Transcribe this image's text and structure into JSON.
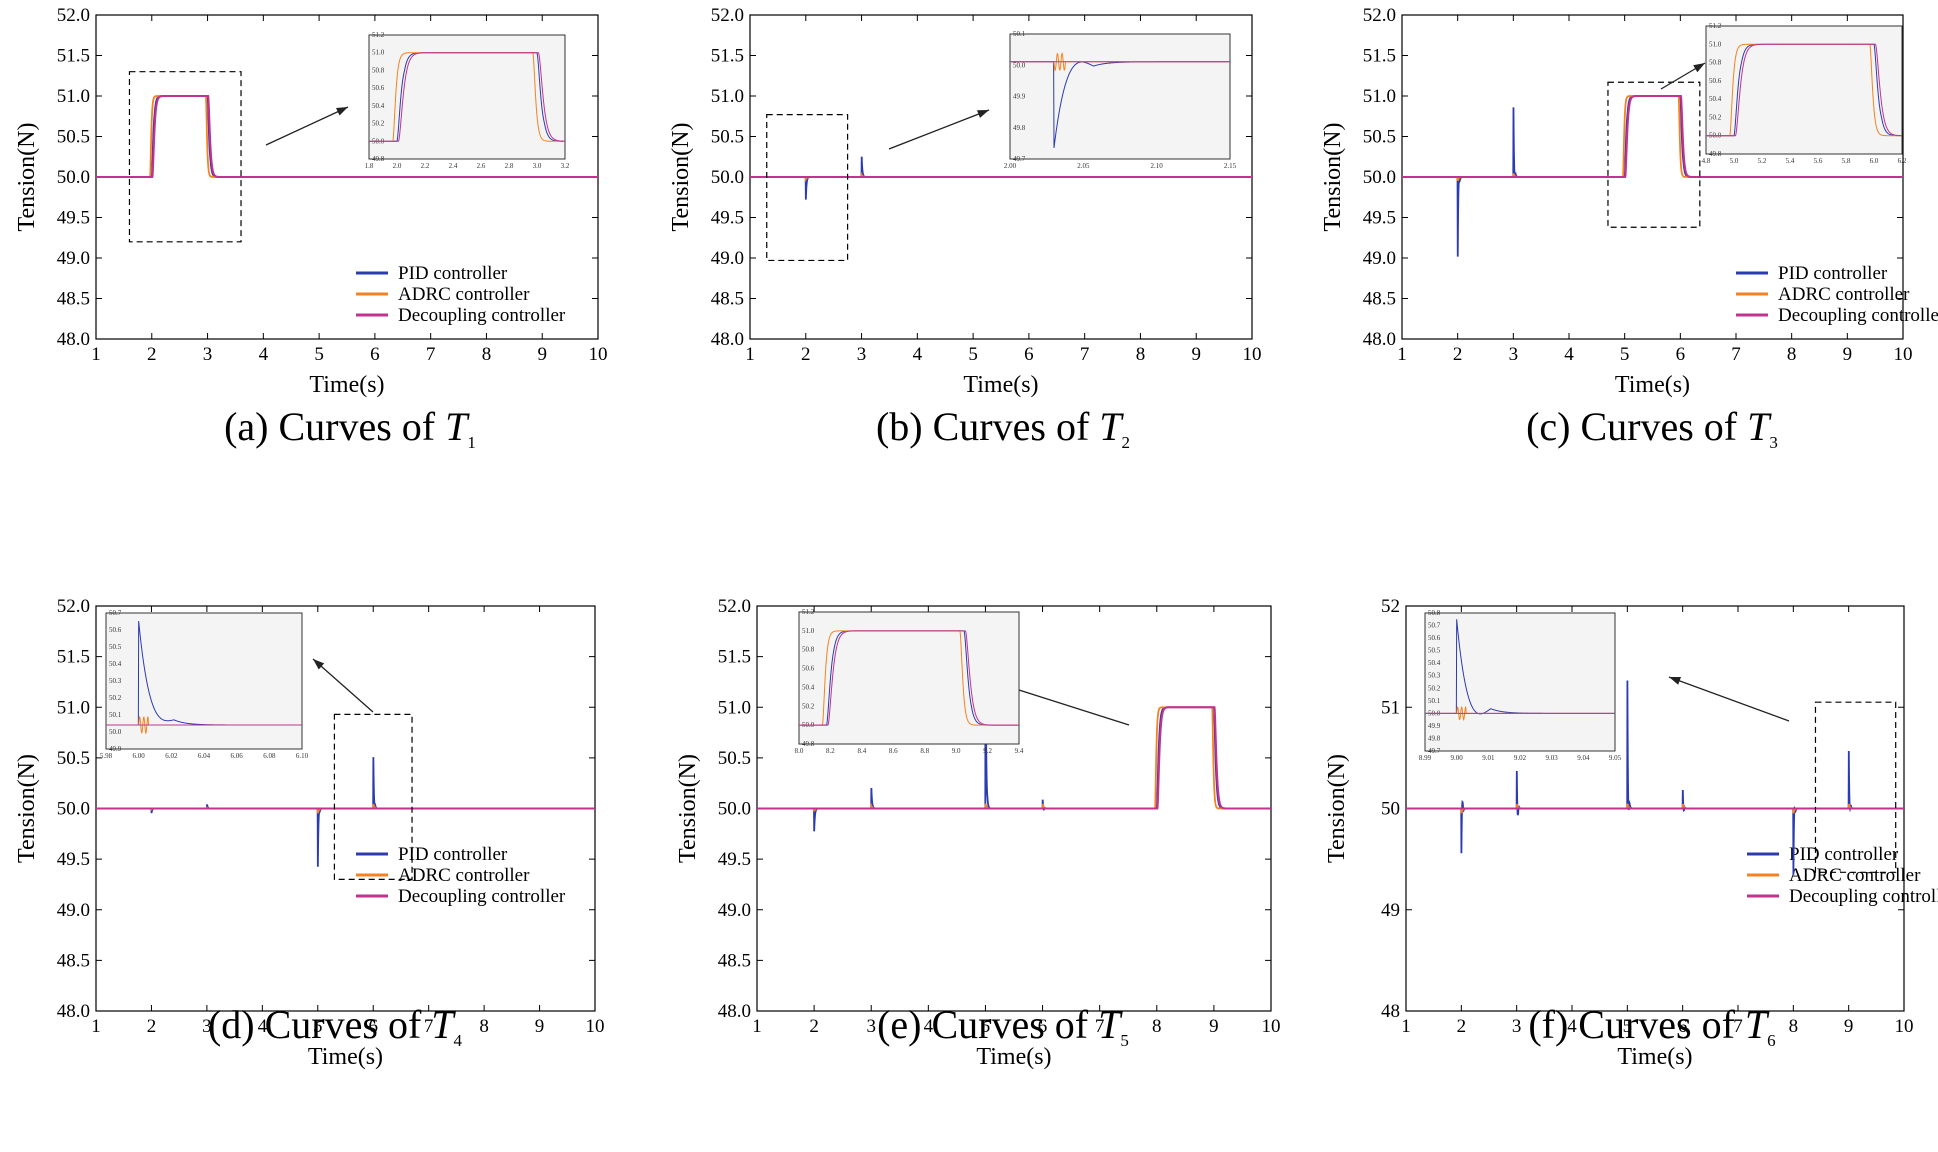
{
  "figure": {
    "colors": {
      "pid": "#2b3bb0",
      "adrc": "#f58220",
      "decoupling": "#c2328f",
      "inset_bg": "#f4f4f4"
    }
  },
  "chart_data": [
    {
      "id": "a",
      "type": "line",
      "caption_prefix": "(a) Curves of ",
      "caption_var": "T",
      "caption_sub": "1",
      "xlabel": "Time(s)",
      "ylabel": "Tension(N)",
      "xlim": [
        1,
        10
      ],
      "ylim": [
        48,
        52
      ],
      "xticks": [
        1,
        2,
        3,
        4,
        5,
        6,
        7,
        8,
        9,
        10
      ],
      "yticks": [
        "48.0",
        "48.5",
        "49.0",
        "49.5",
        "50.0",
        "50.5",
        "51.0",
        "51.5",
        "52.0"
      ],
      "legend": [
        "PID controller",
        "ADRC controller",
        "Decoupling controller"
      ],
      "events": [
        {
          "type": "pulse",
          "t0": 2,
          "t1": 3,
          "amp": 1.0,
          "os": 0.07
        }
      ],
      "zoom_box": {
        "x": [
          1.6,
          3.6
        ],
        "y": [
          49.2,
          51.3
        ]
      },
      "inset": {
        "kind": "pulse",
        "xlim": [
          1.8,
          3.2
        ],
        "ylim": [
          49.8,
          51.2
        ],
        "xticks": [
          "1.8",
          "2.0",
          "2.2",
          "2.4",
          "2.6",
          "2.8",
          "3.0",
          "3.2"
        ],
        "yticks": [
          "49.8",
          "50.0",
          "50.2",
          "50.4",
          "50.6",
          "50.8",
          "51.0",
          "51.2"
        ]
      }
    },
    {
      "id": "b",
      "type": "line",
      "caption_prefix": "(b) Curves of ",
      "caption_var": "T",
      "caption_sub": "2",
      "xlabel": "Time(s)",
      "ylabel": "Tension(N)",
      "xlim": [
        1,
        10
      ],
      "ylim": [
        48,
        52
      ],
      "xticks": [
        1,
        2,
        3,
        4,
        5,
        6,
        7,
        8,
        9,
        10
      ],
      "yticks": [
        "48.0",
        "48.5",
        "49.0",
        "49.5",
        "50.0",
        "50.5",
        "51.0",
        "51.5",
        "52.0"
      ],
      "legend": [
        "PID controller",
        "ADRC controller",
        "Decoupling controller"
      ],
      "events": [
        {
          "type": "spike",
          "t": 2,
          "pid": -0.31,
          "adrc": -0.03
        },
        {
          "type": "spike",
          "t": 3,
          "pid": 0.31,
          "adrc": 0.03
        }
      ],
      "zoom_box": {
        "x": [
          1.3,
          2.75
        ],
        "y": [
          48.97,
          50.77
        ]
      },
      "inset": {
        "kind": "spike",
        "xlim": [
          1.96,
          2.16
        ],
        "ylim": [
          49.65,
          50.1
        ],
        "at": 2.0,
        "xticks": [
          "2.00",
          "2.05",
          "2.10",
          "2.15"
        ],
        "yticks": [
          "49.7",
          "49.8",
          "49.9",
          "50.0",
          "50.1"
        ]
      }
    },
    {
      "id": "c",
      "type": "line",
      "caption_prefix": "(c) Curves of ",
      "caption_var": "T",
      "caption_sub": "3",
      "xlabel": "Time(s)",
      "ylabel": "Tension(N)",
      "xlim": [
        1,
        10
      ],
      "ylim": [
        48,
        52
      ],
      "xticks": [
        1,
        2,
        3,
        4,
        5,
        6,
        7,
        8,
        9,
        10
      ],
      "yticks": [
        "48.0",
        "48.5",
        "49.0",
        "49.5",
        "50.0",
        "50.5",
        "51.0",
        "51.5",
        "52.0"
      ],
      "legend": [
        "PID controller",
        "ADRC controller",
        "Decoupling controller"
      ],
      "events": [
        {
          "type": "spike",
          "t": 2,
          "pid": -1.12,
          "adrc": -0.05,
          "pid2": 0.24
        },
        {
          "type": "spike",
          "t": 3,
          "pid": 1.12,
          "adrc": 0.05,
          "pid2": -0.24
        },
        {
          "type": "pulse",
          "t0": 5,
          "t1": 6,
          "amp": 1.0,
          "os": 0.07
        }
      ],
      "zoom_box": {
        "x": [
          4.7,
          6.35
        ],
        "y": [
          49.38,
          51.17
        ]
      },
      "inset": {
        "kind": "pulse",
        "xlim": [
          4.8,
          6.2
        ],
        "ylim": [
          49.8,
          51.2
        ],
        "xticks": [
          "4.8",
          "5.0",
          "5.2",
          "5.4",
          "5.6",
          "5.8",
          "6.0",
          "6.2"
        ],
        "yticks": [
          "49.8",
          "50.0",
          "50.2",
          "50.4",
          "50.6",
          "50.8",
          "51.0",
          "51.2"
        ]
      }
    },
    {
      "id": "d",
      "type": "line",
      "caption_prefix": "(d) Curves of ",
      "caption_var": "T",
      "caption_sub": "4",
      "xlabel": "Time(s)",
      "ylabel": "Tension(N)",
      "xlim": [
        1,
        10
      ],
      "ylim": [
        48,
        52
      ],
      "xticks": [
        1,
        2,
        3,
        4,
        5,
        6,
        7,
        8,
        9,
        10
      ],
      "yticks": [
        "48.0",
        "48.5",
        "49.0",
        "49.5",
        "50.0",
        "50.5",
        "51.0",
        "51.5",
        "52.0"
      ],
      "legend": [
        "PID controller",
        "ADRC controller",
        "Decoupling controller"
      ],
      "events": [
        {
          "type": "spike",
          "t": 2,
          "pid": -0.05,
          "adrc": -0.01
        },
        {
          "type": "spike",
          "t": 3,
          "pid": 0.05,
          "adrc": 0.01
        },
        {
          "type": "spike",
          "t": 5,
          "pid": -0.65,
          "adrc": -0.05,
          "pid2": 0.1
        },
        {
          "type": "spike",
          "t": 6,
          "pid": 0.65,
          "adrc": 0.05,
          "pid2": -0.1
        }
      ],
      "zoom_box": {
        "x": [
          5.3,
          6.7
        ],
        "y": [
          49.3,
          50.93
        ]
      },
      "inset": {
        "kind": "spike",
        "xlim": [
          5.98,
          6.1
        ],
        "ylim": [
          49.85,
          50.7
        ],
        "at": 6.0,
        "xticks": [
          "5.98",
          "6.00",
          "6.02",
          "6.04",
          "6.06",
          "6.08",
          "6.10"
        ],
        "yticks": [
          "49.9",
          "50.0",
          "50.1",
          "50.2",
          "50.3",
          "50.4",
          "50.5",
          "50.6",
          "50.7"
        ]
      }
    },
    {
      "id": "e",
      "type": "line",
      "caption_prefix": "(e) Curves of ",
      "caption_var": "T",
      "caption_sub": "5",
      "xlabel": "Time(s)",
      "ylabel": "Tension(N)",
      "xlim": [
        1,
        10
      ],
      "ylim": [
        48,
        52
      ],
      "xticks": [
        1,
        2,
        3,
        4,
        5,
        6,
        7,
        8,
        9,
        10
      ],
      "yticks": [
        "48.0",
        "48.5",
        "49.0",
        "49.5",
        "50.0",
        "50.5",
        "51.0",
        "51.5",
        "52.0"
      ],
      "legend": [
        "PID controller",
        "ADRC controller",
        "Decoupling controller"
      ],
      "events": [
        {
          "type": "spike",
          "t": 2,
          "pid": -0.25,
          "adrc": -0.03
        },
        {
          "type": "spike",
          "t": 3,
          "pid": 0.25,
          "adrc": 0.03
        },
        {
          "type": "spike",
          "t": 5,
          "pid": 2.1,
          "adrc": 0.05,
          "pid2": -0.1
        },
        {
          "type": "spike",
          "t": 6,
          "pid": 0.12,
          "adrc": 0.05,
          "pid2": -0.05
        },
        {
          "type": "pulse",
          "t0": 8,
          "t1": 9,
          "amp": 1.0,
          "os": 0.03
        }
      ],
      "zoom_box": null,
      "inset": {
        "kind": "pulse",
        "xlim": [
          7.8,
          9.4
        ],
        "ylim": [
          49.8,
          51.2
        ],
        "xticks": [
          "8.0",
          "8.2",
          "8.4",
          "8.6",
          "8.8",
          "9.0",
          "9.2",
          "9.4"
        ],
        "yticks": [
          "49.8",
          "50.0",
          "50.2",
          "50.4",
          "50.6",
          "50.8",
          "51.0",
          "51.2"
        ]
      }
    },
    {
      "id": "f",
      "type": "line",
      "caption_prefix": "(f) Curves of ",
      "caption_var": "T",
      "caption_sub": "6",
      "xlabel": "Time(s)",
      "ylabel": "Tension(N)",
      "xlim": [
        1,
        10
      ],
      "ylim": [
        48,
        52
      ],
      "xticks": [
        1,
        2,
        3,
        4,
        5,
        6,
        7,
        8,
        9,
        10
      ],
      "yticks": [
        "48",
        "49",
        "50",
        "51",
        "52"
      ],
      "legend": [
        "PID controller",
        "ADRC controller",
        "Decoupling controller"
      ],
      "events": [
        {
          "type": "spike",
          "t": 2,
          "pid": -0.52,
          "adrc": -0.05,
          "pid2": 0.25
        },
        {
          "type": "spike",
          "t": 3,
          "pid": 0.52,
          "adrc": 0.05,
          "pid2": -0.25
        },
        {
          "type": "spike",
          "t": 5,
          "pid": 1.45,
          "adrc": 0.05,
          "pid2": -0.4
        },
        {
          "type": "spike",
          "t": 6,
          "pid": 0.25,
          "adrc": 0.05,
          "pid2": -0.1
        },
        {
          "type": "spike",
          "t": 8,
          "pid": -0.75,
          "adrc": -0.05,
          "pid2": 0.2
        },
        {
          "type": "spike",
          "t": 9,
          "pid": 0.75,
          "adrc": 0.05,
          "pid2": -0.2
        }
      ],
      "zoom_box": {
        "x": [
          8.4,
          9.85
        ],
        "y": [
          49.37,
          51.05
        ]
      },
      "inset": {
        "kind": "spike",
        "xlim": [
          8.99,
          9.05
        ],
        "ylim": [
          49.7,
          50.8
        ],
        "at": 9.0,
        "xticks": [
          "8.99",
          "9.00",
          "9.01",
          "9.02",
          "9.03",
          "9.04",
          "9.05"
        ],
        "yticks": [
          "49.7",
          "49.8",
          "49.9",
          "50.0",
          "50.1",
          "50.2",
          "50.3",
          "50.4",
          "50.5",
          "50.6",
          "50.7",
          "50.8"
        ]
      }
    }
  ]
}
